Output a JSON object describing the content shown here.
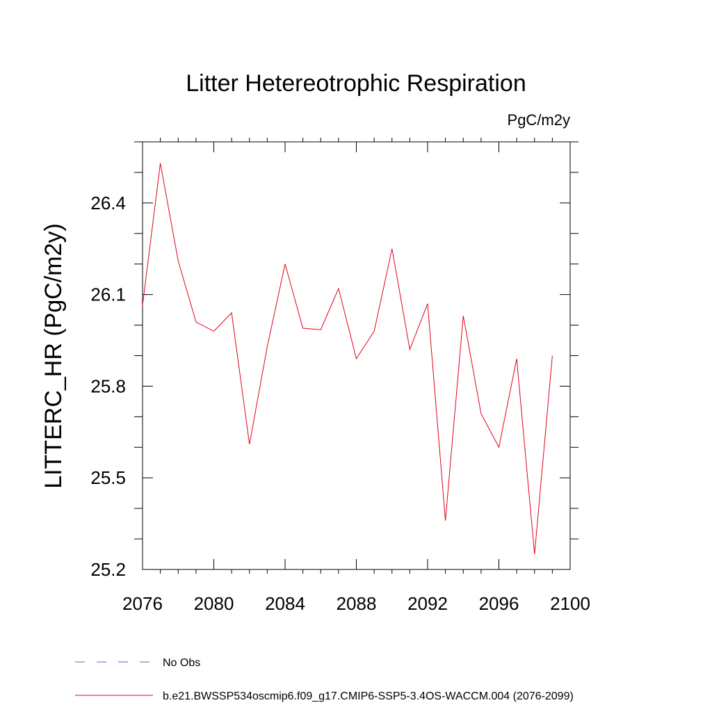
{
  "chart_data": {
    "type": "line",
    "title": "Litter Hetereotrophic Respiration",
    "units": "PgC/m2y",
    "ylabel": "LITTERC_HR  (PgC/m2y)",
    "xlabel": "",
    "xlim": [
      2076,
      2100
    ],
    "ylim": [
      25.2,
      26.6
    ],
    "x_ticks": [
      2076,
      2080,
      2084,
      2088,
      2092,
      2096,
      2100
    ],
    "x_tick_labels": [
      "2076",
      "2080",
      "2084",
      "2088",
      "2092",
      "2096",
      "2100"
    ],
    "y_ticks": [
      25.2,
      25.5,
      25.8,
      26.1,
      26.4
    ],
    "y_tick_labels": [
      "25.2",
      "25.5",
      "25.8",
      "26.1",
      "26.4"
    ],
    "grid": false,
    "series": [
      {
        "name": "b.e21.BWSSP534oscmip6.f09_g17.CMIP6-SSP5-3.4OS-WACCM.004 (2076-2099)",
        "color": "#e0001b",
        "style": "solid",
        "x": [
          2076,
          2077,
          2078,
          2079,
          2080,
          2081,
          2082,
          2083,
          2084,
          2085,
          2086,
          2087,
          2088,
          2089,
          2090,
          2091,
          2092,
          2093,
          2094,
          2095,
          2096,
          2097,
          2098,
          2099
        ],
        "values": [
          26.065,
          26.53,
          26.21,
          26.01,
          25.98,
          26.04,
          25.61,
          25.93,
          26.2,
          25.99,
          25.985,
          26.12,
          25.89,
          25.98,
          26.25,
          25.92,
          26.07,
          25.36,
          26.03,
          25.71,
          25.6,
          25.89,
          25.25,
          25.9
        ]
      }
    ],
    "legend": {
      "placement": "bottom-left",
      "entries": [
        {
          "label": "No Obs",
          "color": "#6b5bc4",
          "style": "dashed"
        },
        {
          "label": "b.e21.BWSSP534oscmip6.f09_g17.CMIP6-SSP5-3.4OS-WACCM.004 (2076-2099)",
          "color": "#e0001b",
          "style": "solid"
        }
      ]
    }
  }
}
